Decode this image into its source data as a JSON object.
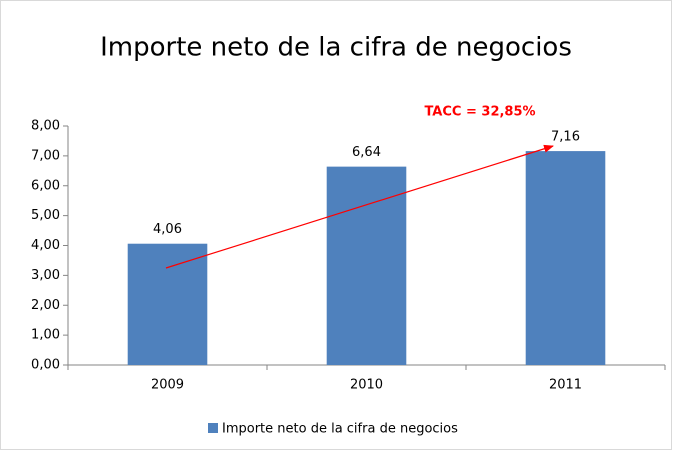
{
  "chart_data": {
    "type": "bar",
    "title": "Importe neto de la cifra de negocios",
    "annotation": "TACC = 32,85%",
    "categories": [
      "2009",
      "2010",
      "2011"
    ],
    "series": [
      {
        "name": "Importe neto de la cifra de negocios",
        "color": "#4f81bd",
        "values": [
          4.06,
          6.64,
          7.16
        ],
        "value_labels": [
          "4,06",
          "6,64",
          "7,16"
        ]
      }
    ],
    "ylim": [
      0,
      8
    ],
    "yticks": [
      {
        "value": 0,
        "label": "0,00"
      },
      {
        "value": 1,
        "label": "1,00"
      },
      {
        "value": 2,
        "label": "2,00"
      },
      {
        "value": 3,
        "label": "3,00"
      },
      {
        "value": 4,
        "label": "4,00"
      },
      {
        "value": 5,
        "label": "5,00"
      },
      {
        "value": 6,
        "label": "6,00"
      },
      {
        "value": 7,
        "label": "7,00"
      },
      {
        "value": 8,
        "label": "8,00"
      }
    ],
    "grid": false,
    "legend": "bottom"
  }
}
